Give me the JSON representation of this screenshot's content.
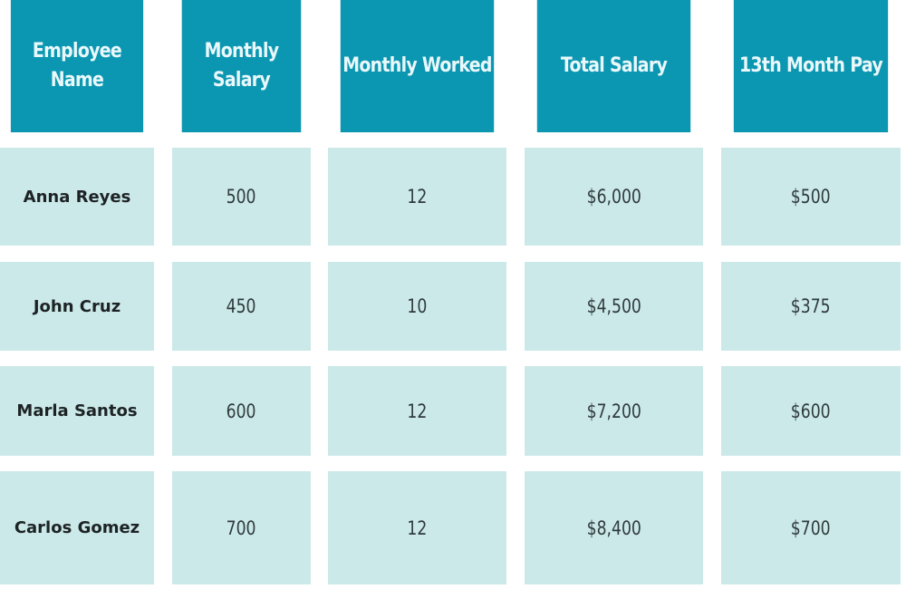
{
  "table": {
    "headers": [
      "Employee Name",
      "Monthly Salary",
      "Monthly Worked",
      "Total Salary",
      "13th Month Pay"
    ],
    "rows": [
      [
        "Anna Reyes",
        "500",
        "12",
        "$6,000",
        "$500"
      ],
      [
        "John Cruz",
        "450",
        "10",
        "$4,500",
        "$375"
      ],
      [
        "Marla Santos",
        "600",
        "12",
        "$7,200",
        "$600"
      ],
      [
        "Carlos Gomez",
        "700",
        "12",
        "$8,400",
        "$700"
      ]
    ]
  },
  "colors": {
    "header_bg": "#0b97b1",
    "body_bg": "#cce9ea",
    "background": "#ffffff"
  }
}
